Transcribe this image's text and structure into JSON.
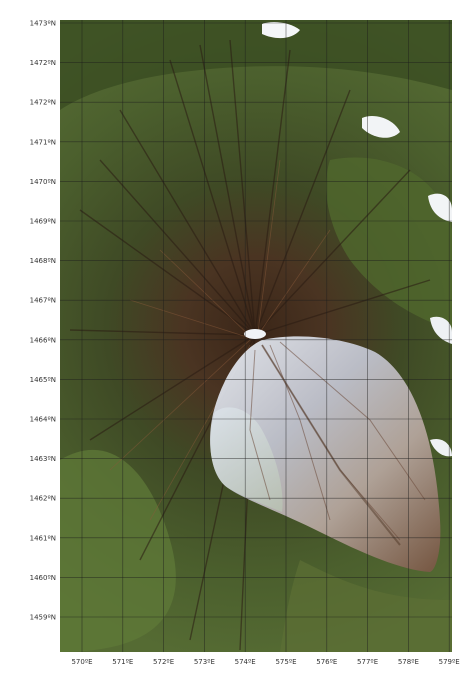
{
  "map": {
    "y_ticks": [
      "1473ºN",
      "1472ºN",
      "1472ºN",
      "1471ºN",
      "1470ºN",
      "1469ºN",
      "1468ºN",
      "1467ºN",
      "1466ºN",
      "1465ºN",
      "1464ºN",
      "1463ºN",
      "1462ºN",
      "1461ºN",
      "1460ºN",
      "1459ºN"
    ],
    "x_ticks": [
      "570ºE",
      "571ºE",
      "572ºE",
      "573ºE",
      "574ºE",
      "575ºE",
      "576ºE",
      "577ºE",
      "578ºE",
      "579ºE"
    ],
    "colors": {
      "vegetation": "#4a5d2c",
      "dark_forest": "#2f3f1d",
      "slope_brown": "#5b3a24",
      "ash_overlay": "#c9d2de",
      "grid": "#1c1c1c"
    }
  }
}
